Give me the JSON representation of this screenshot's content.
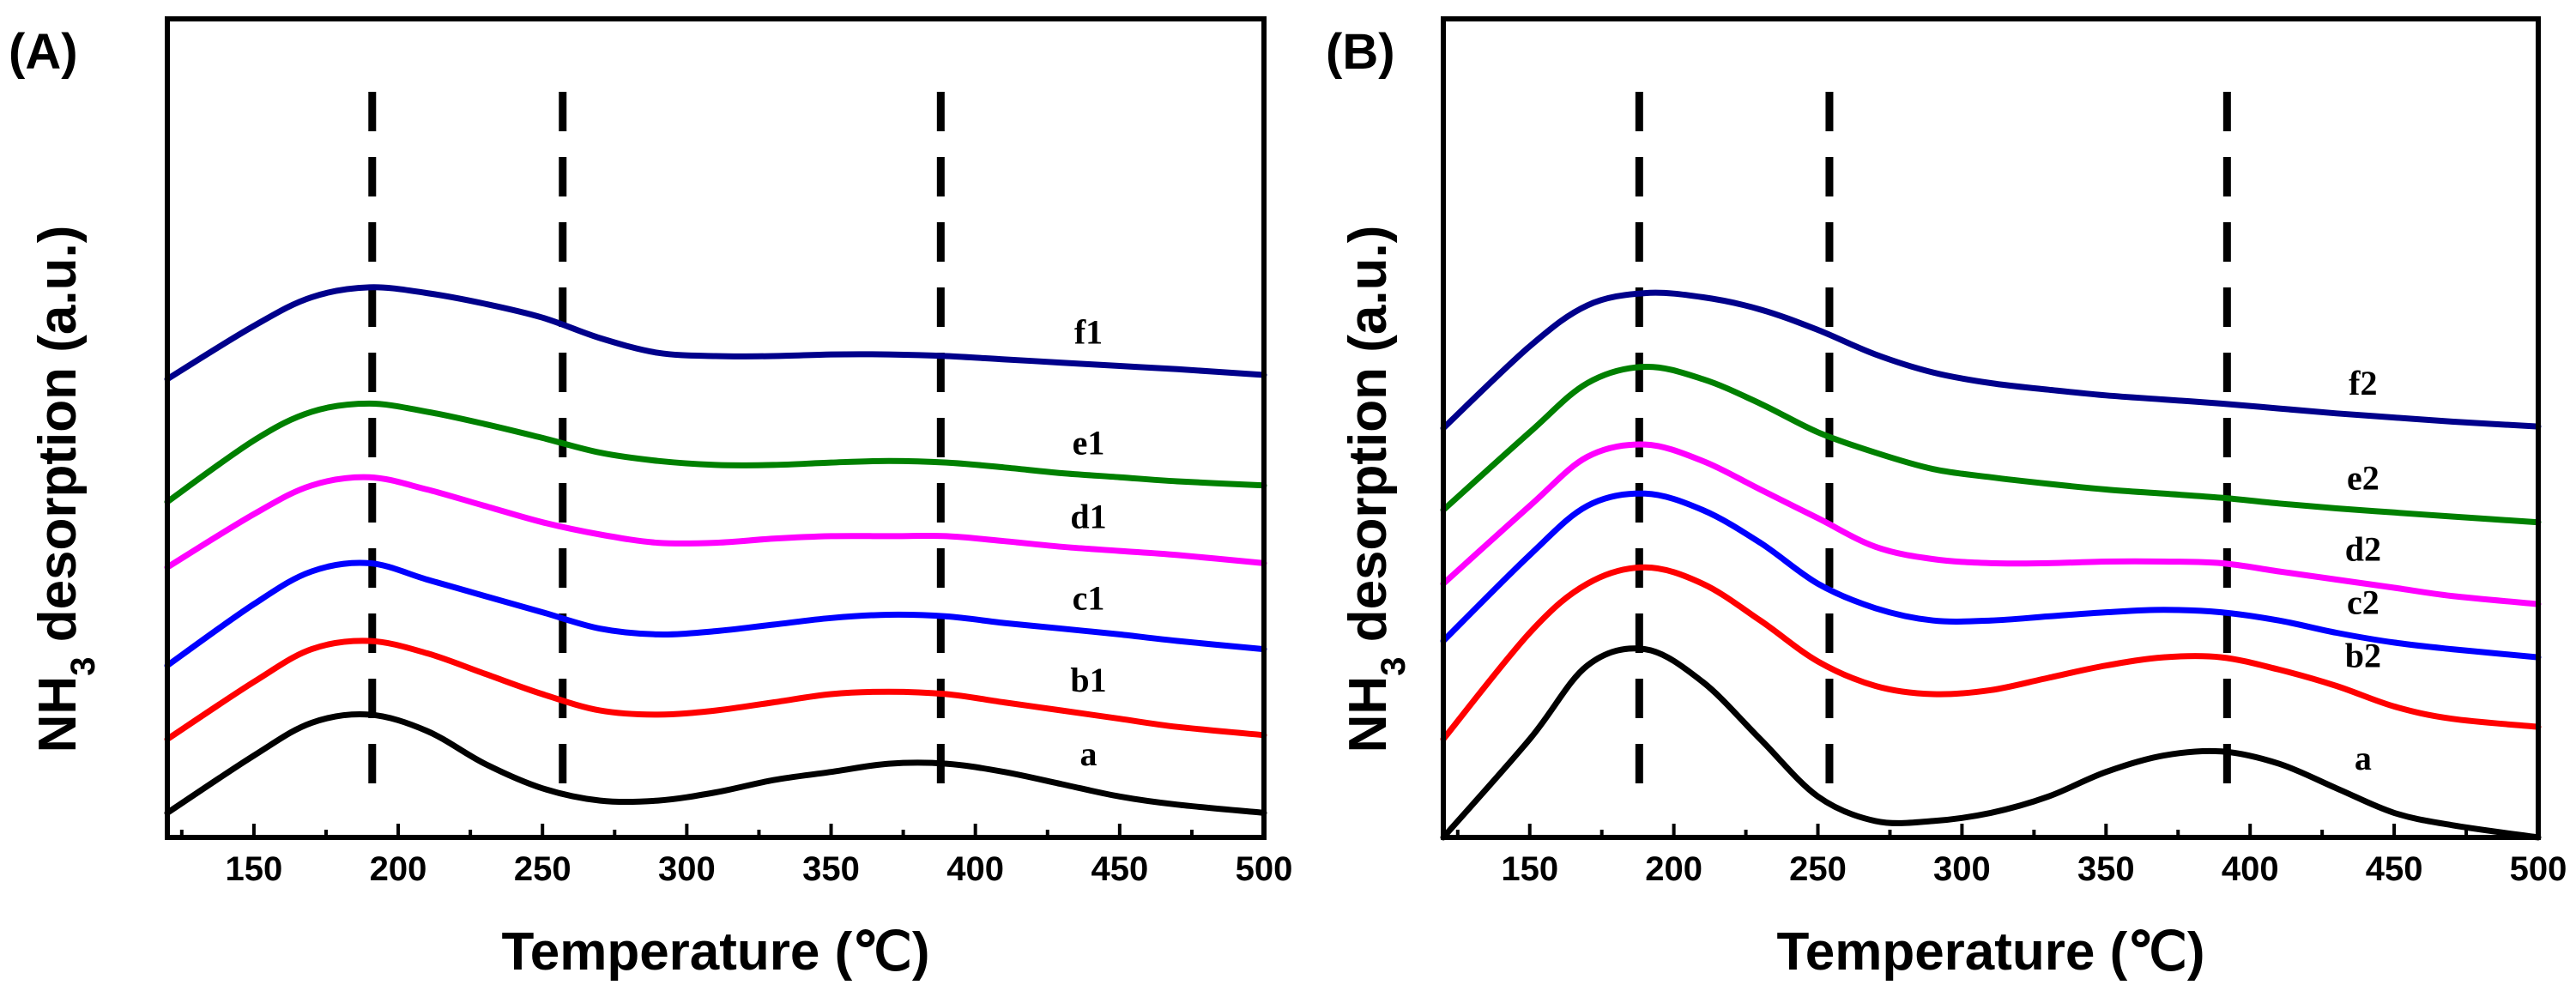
{
  "chart_data": [
    {
      "panel": "(A)",
      "type": "line",
      "xlabel": "Temperature (℃)",
      "ylabel_main": "NH",
      "ylabel_sub": "3",
      "ylabel_rest": " desorption (a.u.)",
      "xlim": [
        120,
        500
      ],
      "ylim": [
        0,
        10
      ],
      "xticks": [
        150,
        200,
        250,
        300,
        350,
        400,
        450,
        500
      ],
      "reference_lines": [
        191,
        257,
        388
      ],
      "x": [
        120,
        150,
        170,
        190,
        210,
        230,
        250,
        270,
        290,
        310,
        330,
        350,
        370,
        390,
        410,
        430,
        450,
        470,
        500
      ],
      "series": [
        {
          "name": "a",
          "color": "#000000",
          "values": [
            0.3,
            1.0,
            1.4,
            1.5,
            1.3,
            0.9,
            0.6,
            0.45,
            0.45,
            0.55,
            0.7,
            0.8,
            0.9,
            0.9,
            0.8,
            0.65,
            0.5,
            0.4,
            0.3
          ]
        },
        {
          "name": "b1",
          "color": "#ff0000",
          "values": [
            1.2,
            1.9,
            2.3,
            2.4,
            2.25,
            2.0,
            1.75,
            1.55,
            1.5,
            1.55,
            1.65,
            1.75,
            1.78,
            1.75,
            1.65,
            1.55,
            1.45,
            1.35,
            1.25
          ]
        },
        {
          "name": "c1",
          "color": "#0000ff",
          "values": [
            2.1,
            2.85,
            3.25,
            3.35,
            3.15,
            2.95,
            2.75,
            2.55,
            2.48,
            2.52,
            2.6,
            2.68,
            2.72,
            2.7,
            2.62,
            2.55,
            2.48,
            2.4,
            2.3
          ]
        },
        {
          "name": "d1",
          "color": "#ff00ff",
          "values": [
            3.3,
            3.95,
            4.3,
            4.4,
            4.25,
            4.05,
            3.85,
            3.7,
            3.6,
            3.6,
            3.65,
            3.68,
            3.68,
            3.68,
            3.62,
            3.55,
            3.5,
            3.45,
            3.35
          ]
        },
        {
          "name": "e1",
          "color": "#008000",
          "values": [
            4.1,
            4.85,
            5.2,
            5.3,
            5.2,
            5.05,
            4.88,
            4.7,
            4.6,
            4.55,
            4.55,
            4.58,
            4.6,
            4.58,
            4.52,
            4.45,
            4.4,
            4.35,
            4.3
          ]
        },
        {
          "name": "f1",
          "color": "#00008b",
          "values": [
            5.6,
            6.25,
            6.6,
            6.72,
            6.65,
            6.52,
            6.35,
            6.1,
            5.92,
            5.88,
            5.88,
            5.9,
            5.9,
            5.88,
            5.84,
            5.8,
            5.76,
            5.72,
            5.65
          ]
        }
      ]
    },
    {
      "panel": "(B)",
      "type": "line",
      "xlabel": "Temperature (℃)",
      "ylabel_main": "NH",
      "ylabel_sub": "3",
      "ylabel_rest": " desorption (a.u.)",
      "xlim": [
        120,
        500
      ],
      "ylim": [
        0,
        10
      ],
      "xticks": [
        150,
        200,
        250,
        300,
        350,
        400,
        450,
        500
      ],
      "reference_lines": [
        188,
        254,
        392
      ],
      "x": [
        120,
        150,
        170,
        190,
        210,
        230,
        250,
        270,
        290,
        310,
        330,
        350,
        370,
        390,
        410,
        430,
        450,
        470,
        500
      ],
      "series": [
        {
          "name": "a",
          "color": "#000000",
          "values": [
            0.0,
            1.2,
            2.1,
            2.3,
            1.9,
            1.2,
            0.5,
            0.2,
            0.2,
            0.3,
            0.5,
            0.8,
            1.0,
            1.05,
            0.9,
            0.6,
            0.3,
            0.15,
            0.0
          ]
        },
        {
          "name": "b2",
          "color": "#ff0000",
          "values": [
            1.2,
            2.5,
            3.1,
            3.3,
            3.1,
            2.65,
            2.15,
            1.85,
            1.75,
            1.8,
            1.95,
            2.1,
            2.2,
            2.2,
            2.05,
            1.85,
            1.6,
            1.45,
            1.35
          ]
        },
        {
          "name": "c2",
          "color": "#0000ff",
          "values": [
            2.4,
            3.45,
            4.05,
            4.2,
            4.0,
            3.6,
            3.1,
            2.8,
            2.65,
            2.65,
            2.7,
            2.75,
            2.78,
            2.75,
            2.65,
            2.5,
            2.38,
            2.3,
            2.2
          ]
        },
        {
          "name": "d2",
          "color": "#ff00ff",
          "values": [
            3.1,
            4.05,
            4.65,
            4.8,
            4.6,
            4.25,
            3.9,
            3.55,
            3.4,
            3.35,
            3.35,
            3.37,
            3.37,
            3.35,
            3.25,
            3.15,
            3.05,
            2.95,
            2.85
          ]
        },
        {
          "name": "e2",
          "color": "#008000",
          "values": [
            4.0,
            4.95,
            5.55,
            5.75,
            5.6,
            5.3,
            4.95,
            4.7,
            4.5,
            4.4,
            4.32,
            4.25,
            4.2,
            4.15,
            4.08,
            4.02,
            3.97,
            3.92,
            3.85
          ]
        },
        {
          "name": "f2",
          "color": "#00008b",
          "values": [
            5.0,
            6.0,
            6.5,
            6.65,
            6.6,
            6.45,
            6.2,
            5.9,
            5.68,
            5.55,
            5.47,
            5.4,
            5.35,
            5.3,
            5.24,
            5.18,
            5.13,
            5.08,
            5.02
          ]
        }
      ]
    }
  ]
}
